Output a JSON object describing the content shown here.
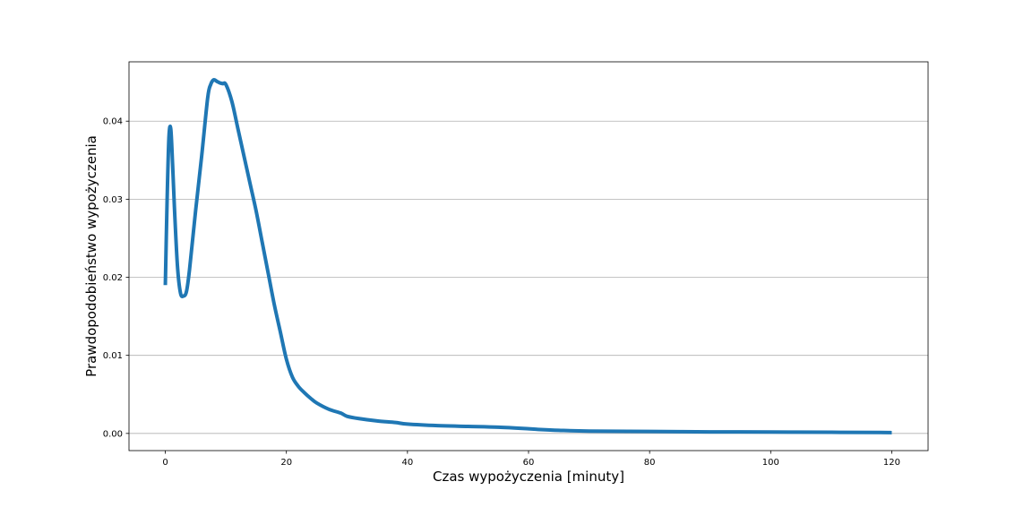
{
  "chart_data": {
    "type": "line",
    "title": "",
    "xlabel": "Czas wypożyczenia [minuty]",
    "ylabel": "Prawdopodobieństwo wypożyczenia",
    "xlim": [
      -6,
      126
    ],
    "ylim": [
      -0.0022,
      0.0476
    ],
    "x_ticks": [
      0,
      20,
      40,
      60,
      80,
      100,
      120
    ],
    "x_tick_labels": [
      "0",
      "20",
      "40",
      "60",
      "80",
      "100",
      "120"
    ],
    "y_ticks": [
      0.0,
      0.01,
      0.02,
      0.03,
      0.04
    ],
    "y_tick_labels": [
      "0.00",
      "0.01",
      "0.02",
      "0.03",
      "0.04"
    ],
    "grid": "horizontal",
    "legend": "none",
    "series": [
      {
        "color": "#1f77b4",
        "x": [
          0,
          0.3,
          0.6,
          0.9,
          1.2,
          1.5,
          2,
          2.5,
          3,
          3.5,
          4,
          5,
          6,
          7,
          7.5,
          8,
          8.5,
          9,
          9.5,
          10,
          11,
          12,
          13,
          14,
          15,
          16,
          17,
          18,
          19,
          20,
          21,
          22,
          23,
          24,
          25,
          27,
          29,
          30,
          32,
          35,
          38,
          40,
          45,
          50,
          55,
          60,
          62,
          65,
          70,
          80,
          90,
          100,
          110,
          118,
          120
        ],
        "y": [
          0.019,
          0.03,
          0.038,
          0.039,
          0.0345,
          0.029,
          0.0215,
          0.018,
          0.0176,
          0.0182,
          0.021,
          0.0285,
          0.0355,
          0.043,
          0.0447,
          0.0453,
          0.0451,
          0.0449,
          0.0448,
          0.0447,
          0.0425,
          0.039,
          0.0355,
          0.032,
          0.0285,
          0.0245,
          0.0205,
          0.0165,
          0.013,
          0.0095,
          0.0072,
          0.006,
          0.0052,
          0.0045,
          0.0039,
          0.0031,
          0.0026,
          0.0022,
          0.0019,
          0.0016,
          0.0014,
          0.0012,
          0.001,
          0.0009,
          0.0008,
          0.0006,
          0.0005,
          0.0004,
          0.0003,
          0.00025,
          0.0002,
          0.00018,
          0.00015,
          0.00012,
          0.0001
        ]
      }
    ]
  }
}
